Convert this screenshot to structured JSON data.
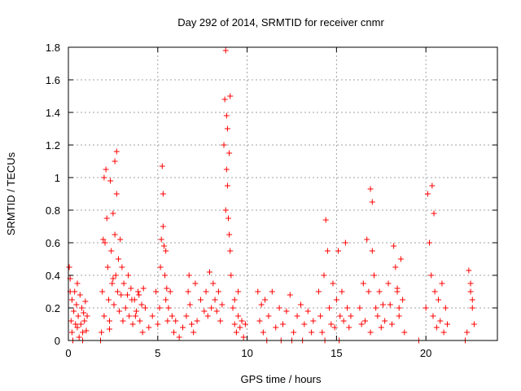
{
  "chart_data": {
    "type": "scatter",
    "title": "Day 292 of 2014, SRMTID for receiver cnmr",
    "xlabel": "GPS time / hours",
    "ylabel": "SRMTID / TECUs",
    "xlim": [
      0,
      24
    ],
    "ylim": [
      0,
      1.8
    ],
    "x_ticks": [
      0,
      5,
      10,
      15,
      20
    ],
    "x_tick_labels": [
      "0",
      "5",
      "10",
      "15",
      "20"
    ],
    "y_ticks": [
      0,
      0.2,
      0.4,
      0.6,
      0.8,
      1.0,
      1.2,
      1.4,
      1.6,
      1.8
    ],
    "y_tick_labels": [
      "0",
      "0.2",
      "0.4",
      "0.6",
      "0.8",
      "1",
      "1.2",
      "1.4",
      "1.6",
      "1.8"
    ],
    "grid": true,
    "marker": "+",
    "marker_color": "#ff0000",
    "series": [
      {
        "name": "SRMTID",
        "x": [
          0.05,
          0.1,
          0.1,
          0.15,
          0.2,
          0.2,
          0.3,
          0.35,
          0.4,
          0.45,
          0.5,
          0.55,
          0.6,
          0.65,
          0.7,
          0.75,
          0.8,
          0.85,
          0.9,
          0.95,
          1.0,
          1.05,
          0.25,
          0.5,
          0.8,
          1.8,
          1.85,
          1.9,
          1.95,
          2.0,
          2.0,
          2.05,
          2.1,
          2.15,
          2.2,
          2.25,
          2.3,
          2.35,
          2.4,
          2.45,
          2.5,
          2.55,
          2.6,
          2.6,
          2.65,
          2.7,
          2.7,
          2.75,
          2.8,
          2.85,
          2.9,
          2.95,
          3.0,
          3.05,
          2.3,
          2.5,
          3.1,
          3.2,
          3.3,
          3.4,
          3.5,
          3.6,
          3.7,
          3.8,
          3.9,
          4.0,
          4.1,
          4.2,
          3.35,
          3.55,
          3.75,
          3.95,
          4.15,
          4.3,
          4.5,
          4.7,
          4.9,
          5.0,
          5.1,
          5.15,
          5.2,
          5.25,
          5.3,
          5.35,
          5.4,
          5.45,
          5.5,
          5.55,
          5.6,
          5.3,
          5.45,
          5.7,
          5.8,
          5.9,
          6.0,
          6.2,
          6.4,
          6.6,
          6.7,
          6.8,
          6.9,
          7.0,
          7.2,
          7.4,
          7.6,
          6.75,
          7.1,
          7.7,
          7.8,
          7.9,
          8.0,
          8.1,
          8.2,
          8.3,
          8.4,
          8.5,
          8.6,
          8.7,
          8.75,
          8.8,
          8.85,
          8.9,
          8.95,
          9.0,
          9.05,
          8.8,
          8.85,
          8.9,
          9.0,
          9.05,
          9.1,
          9.2,
          9.3,
          9.4,
          9.5,
          9.6,
          9.7,
          9.8,
          9.9,
          9.3,
          9.5,
          10.6,
          10.7,
          10.8,
          10.9,
          11.0,
          11.2,
          11.4,
          11.6,
          11.8,
          12.0,
          12.2,
          12.4,
          12.6,
          12.8,
          13.0,
          13.2,
          13.4,
          13.6,
          13.7,
          11.1,
          11.9,
          12.5,
          13.1,
          14.0,
          14.1,
          14.2,
          14.3,
          14.4,
          14.5,
          14.6,
          14.7,
          14.8,
          14.9,
          15.0,
          15.1,
          15.2,
          15.3,
          15.4,
          15.5,
          15.6,
          15.7,
          15.8,
          14.35,
          15.15,
          16.3,
          16.4,
          16.5,
          16.6,
          16.7,
          16.8,
          16.9,
          17.0,
          17.1,
          17.2,
          17.3,
          17.4,
          17.5,
          17.6,
          17.7,
          16.9,
          17.0,
          17.9,
          18.0,
          18.1,
          18.2,
          18.3,
          18.4,
          18.5,
          18.6,
          18.7,
          18.8,
          18.4,
          18.5,
          19.6,
          20.0,
          20.1,
          20.2,
          20.3,
          20.4,
          20.5,
          20.6,
          20.7,
          20.8,
          20.9,
          21.0,
          21.1,
          21.2,
          20.35,
          20.45,
          22.2,
          22.3,
          22.4,
          22.5,
          22.6,
          22.7,
          22.5,
          22.6
        ],
        "y": [
          0.45,
          0.38,
          0.3,
          0.12,
          0.25,
          0.05,
          0.18,
          0.3,
          0.1,
          0.22,
          0.08,
          0.15,
          0.02,
          0.28,
          0.1,
          0.2,
          0.05,
          0.17,
          0.12,
          0.24,
          0.06,
          0.15,
          0.0,
          0.35,
          0.0,
          0.0,
          0.05,
          0.3,
          0.62,
          1.0,
          0.15,
          0.6,
          1.05,
          0.75,
          0.45,
          0.25,
          0.12,
          0.98,
          0.55,
          0.35,
          0.78,
          0.22,
          0.65,
          1.1,
          0.4,
          1.16,
          0.9,
          0.3,
          0.5,
          0.18,
          0.62,
          0.28,
          0.45,
          0.12,
          0.07,
          0.38,
          0.35,
          0.2,
          0.28,
          0.15,
          0.32,
          0.1,
          0.25,
          0.18,
          0.3,
          0.12,
          0.22,
          0.32,
          0.4,
          0.25,
          0.15,
          0.28,
          0.05,
          0.2,
          0.08,
          0.15,
          0.3,
          0.1,
          0.2,
          0.45,
          0.62,
          1.07,
          0.9,
          0.58,
          0.4,
          0.25,
          0.32,
          0.12,
          0.2,
          0.7,
          0.55,
          0.3,
          0.15,
          0.05,
          0.12,
          0.02,
          0.08,
          0.15,
          0.3,
          0.22,
          0.1,
          0.05,
          0.12,
          0.25,
          0.18,
          0.4,
          0.35,
          0.3,
          0.15,
          0.42,
          0.2,
          0.35,
          0.25,
          0.18,
          0.3,
          0.12,
          0.22,
          1.2,
          1.48,
          0.8,
          1.05,
          1.3,
          0.75,
          1.15,
          0.55,
          1.78,
          1.38,
          0.95,
          0.65,
          1.5,
          0.4,
          0.2,
          0.1,
          0.05,
          0.15,
          0.08,
          0.12,
          0.02,
          0.1,
          0.25,
          0.3,
          0.3,
          0.12,
          0.22,
          0.05,
          0.25,
          0.15,
          0.3,
          0.08,
          0.2,
          0.1,
          0.18,
          0.28,
          0.05,
          0.15,
          0.22,
          0.1,
          0.18,
          0.05,
          0.12,
          0.0,
          0.0,
          0.0,
          0.0,
          0.3,
          0.15,
          0.05,
          0.4,
          0.74,
          0.55,
          0.2,
          0.1,
          0.35,
          0.08,
          0.25,
          0.55,
          0.15,
          0.3,
          0.12,
          0.6,
          0.2,
          0.08,
          0.15,
          0.0,
          0.0,
          0.2,
          0.1,
          0.35,
          0.12,
          0.62,
          0.3,
          0.05,
          0.55,
          0.4,
          0.2,
          0.15,
          0.3,
          0.08,
          0.22,
          0.12,
          0.93,
          0.85,
          0.35,
          0.22,
          0.1,
          0.58,
          0.45,
          0.3,
          0.15,
          0.5,
          0.25,
          0.05,
          0.32,
          0.2,
          0.0,
          0.2,
          0.9,
          0.6,
          0.4,
          0.15,
          0.3,
          0.08,
          0.25,
          0.12,
          0.35,
          0.05,
          0.2,
          0.1,
          0.95,
          0.78,
          0.0,
          0.05,
          0.43,
          0.3,
          0.2,
          0.1,
          0.35,
          0.25
        ]
      }
    ]
  }
}
